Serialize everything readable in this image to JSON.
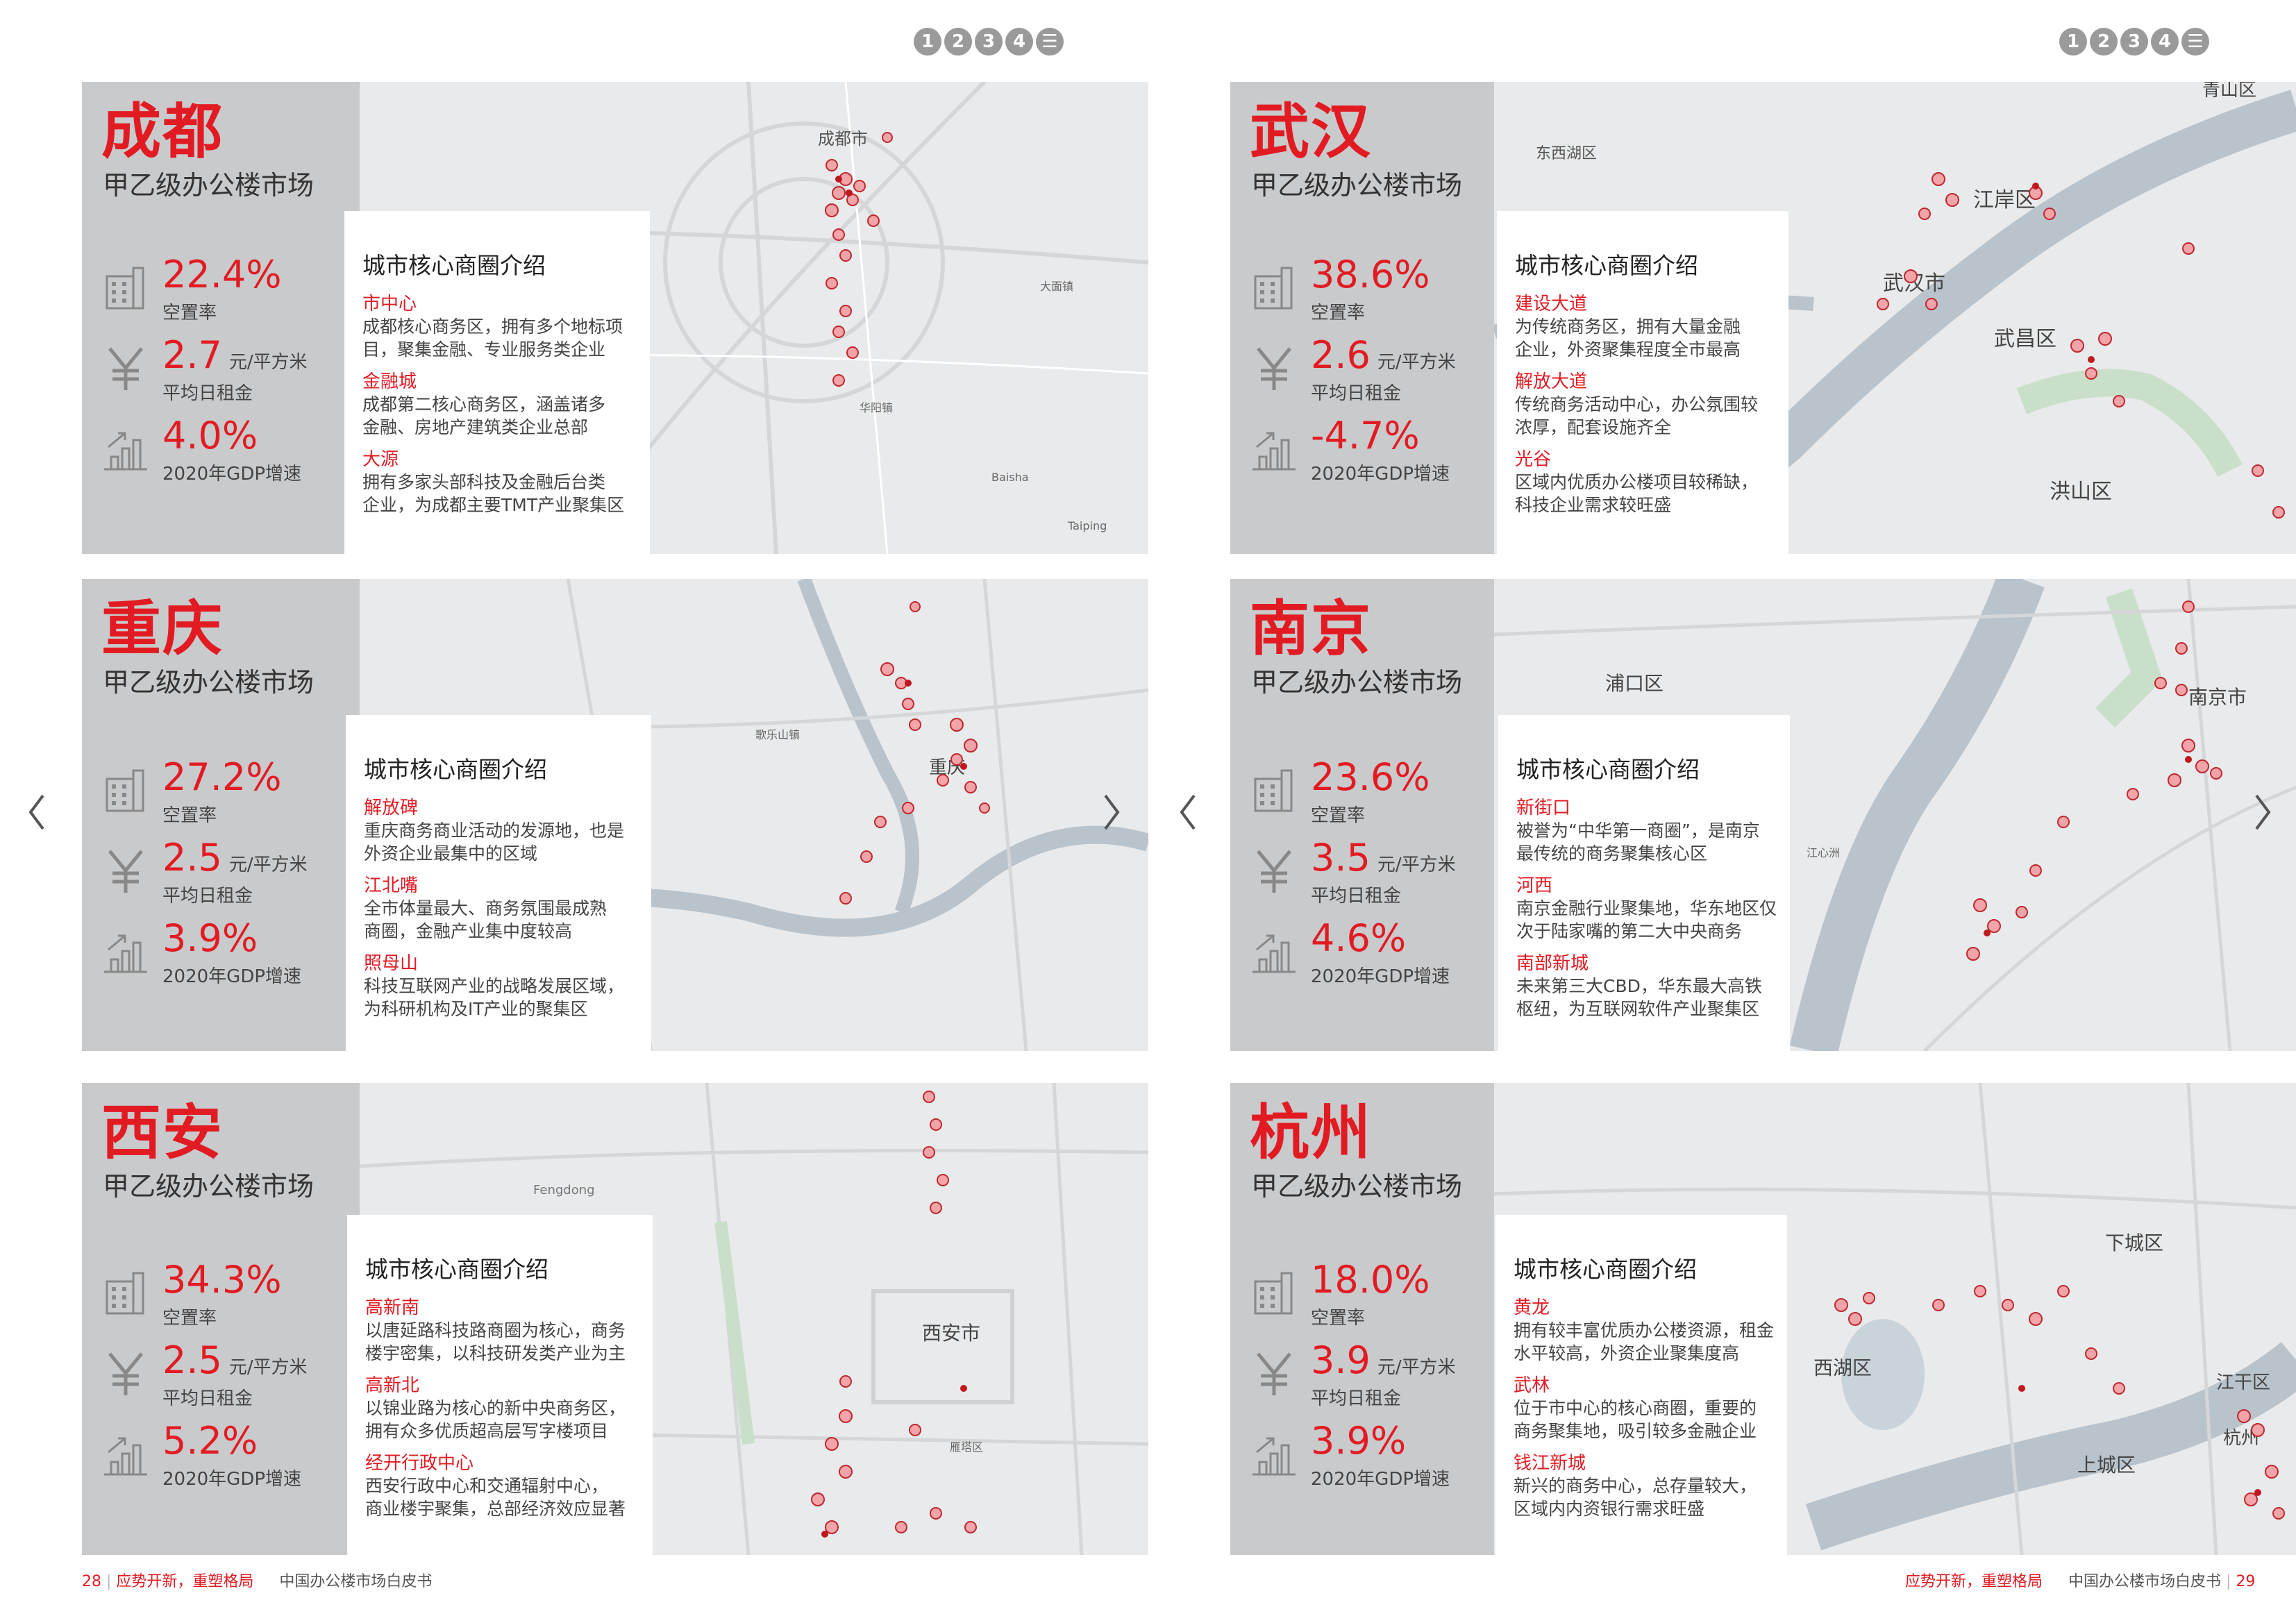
{
  "nav": [
    "1",
    "2",
    "3",
    "4",
    "☰"
  ],
  "cards": [
    {
      "city": "成都",
      "subtitle": "甲乙级办公楼市场",
      "stats": [
        {
          "value": "22.4%",
          "unit": "",
          "label": "空置率",
          "icon": "building-icon"
        },
        {
          "value": "2.7",
          "unit": "元/平方米",
          "label": "平均日租金",
          "icon": "yuan-icon"
        },
        {
          "value": "4.0%",
          "unit": "",
          "label": "2020年GDP增速",
          "icon": "growth-chart-icon"
        }
      ],
      "intro_title": "城市核心商圈介绍",
      "areas": [
        {
          "name": "市中心",
          "desc": [
            "成都核心商务区，拥有多个地标项",
            "目，聚集金融、专业服务类企业"
          ]
        },
        {
          "name": "金融城",
          "desc": [
            "成都第二核心商务区，涵盖诸多",
            "金融、房地产建筑类企业总部"
          ]
        },
        {
          "name": "大源",
          "desc": [
            "拥有多家头部科技及金融后台类",
            "企业，为成都主要TMT产业聚集区"
          ]
        }
      ],
      "map_labels": [
        "成都市",
        "大面镇",
        "华阳镇",
        "Baisha",
        "Taiping"
      ]
    },
    {
      "city": "武汉",
      "subtitle": "甲乙级办公楼市场",
      "stats": [
        {
          "value": "38.6%",
          "unit": "",
          "label": "空置率",
          "icon": "building-icon"
        },
        {
          "value": "2.6",
          "unit": "元/平方米",
          "label": "平均日租金",
          "icon": "yuan-icon"
        },
        {
          "value": "-4.7%",
          "unit": "",
          "label": "2020年GDP增速",
          "icon": "growth-chart-icon"
        }
      ],
      "intro_title": "城市核心商圈介绍",
      "areas": [
        {
          "name": "建设大道",
          "desc": [
            "为传统商务区，拥有大量金融",
            "企业，外资聚集程度全市最高"
          ]
        },
        {
          "name": "解放大道",
          "desc": [
            "传统商务活动中心，办公氛围较",
            "浓厚，配套设施齐全"
          ]
        },
        {
          "name": "光谷",
          "desc": [
            "区域内优质办公楼项目较稀缺，",
            "科技企业需求较旺盛"
          ]
        }
      ],
      "map_labels": [
        "青山区",
        "东西湖区",
        "江岸区",
        "武汉市",
        "武昌区",
        "洪山区"
      ]
    },
    {
      "city": "重庆",
      "subtitle": "甲乙级办公楼市场",
      "stats": [
        {
          "value": "27.2%",
          "unit": "",
          "label": "空置率",
          "icon": "building-icon"
        },
        {
          "value": "2.5",
          "unit": "元/平方米",
          "label": "平均日租金",
          "icon": "yuan-icon"
        },
        {
          "value": "3.9%",
          "unit": "",
          "label": "2020年GDP增速",
          "icon": "growth-chart-icon"
        }
      ],
      "intro_title": "城市核心商圈介绍",
      "areas": [
        {
          "name": "解放碑",
          "desc": [
            "重庆商务商业活动的发源地，也是",
            "外资企业最集中的区域"
          ]
        },
        {
          "name": "江北嘴",
          "desc": [
            "全市体量最大、商务氛围最成熟",
            "商圈，金融产业集中度较高"
          ]
        },
        {
          "name": "照母山",
          "desc": [
            "科技互联网产业的战略发展区域，",
            "为科研机构及IT产业的聚集区"
          ]
        }
      ],
      "map_labels": [
        "重庆",
        "歌乐山镇"
      ]
    },
    {
      "city": "南京",
      "subtitle": "甲乙级办公楼市场",
      "stats": [
        {
          "value": "23.6%",
          "unit": "",
          "label": "空置率",
          "icon": "building-icon"
        },
        {
          "value": "3.5",
          "unit": "元/平方米",
          "label": "平均日租金",
          "icon": "yuan-icon"
        },
        {
          "value": "4.6%",
          "unit": "",
          "label": "2020年GDP增速",
          "icon": "growth-chart-icon"
        }
      ],
      "intro_title": "城市核心商圈介绍",
      "areas": [
        {
          "name": "新街口",
          "desc": [
            "被誉为“中华第一商圈”，是南京",
            "最传统的商务聚集核心区"
          ]
        },
        {
          "name": "河西",
          "desc": [
            "南京金融行业聚集地，华东地区仅",
            "次于陆家嘴的第二大中央商务"
          ]
        },
        {
          "name": "南部新城",
          "desc": [
            "未来第三大CBD，华东最大高铁",
            "枢纽，为互联网软件产业聚集区"
          ]
        }
      ],
      "map_labels": [
        "浦口区",
        "南京市",
        "江心洲"
      ]
    },
    {
      "city": "西安",
      "subtitle": "甲乙级办公楼市场",
      "stats": [
        {
          "value": "34.3%",
          "unit": "",
          "label": "空置率",
          "icon": "building-icon"
        },
        {
          "value": "2.5",
          "unit": "元/平方米",
          "label": "平均日租金",
          "icon": "yuan-icon"
        },
        {
          "value": "5.2%",
          "unit": "",
          "label": "2020年GDP增速",
          "icon": "growth-chart-icon"
        }
      ],
      "intro_title": "城市核心商圈介绍",
      "areas": [
        {
          "name": "高新南",
          "desc": [
            "以唐延路科技路商圈为核心，商务",
            "楼宇密集，以科技研发类产业为主"
          ]
        },
        {
          "name": "高新北",
          "desc": [
            "以锦业路为核心的新中央商务区，",
            "拥有众多优质超高层写字楼项目"
          ]
        },
        {
          "name": "经开行政中心",
          "desc": [
            "西安行政中心和交通辐射中心，",
            "商业楼宇聚集，总部经济效应显著"
          ]
        }
      ],
      "map_labels": [
        "西安市",
        "Fengdong",
        "雁塔区"
      ]
    },
    {
      "city": "杭州",
      "subtitle": "甲乙级办公楼市场",
      "stats": [
        {
          "value": "18.0%",
          "unit": "",
          "label": "空置率",
          "icon": "building-icon"
        },
        {
          "value": "3.9",
          "unit": "元/平方米",
          "label": "平均日租金",
          "icon": "yuan-icon"
        },
        {
          "value": "3.9%",
          "unit": "",
          "label": "2020年GDP增速",
          "icon": "growth-chart-icon"
        }
      ],
      "intro_title": "城市核心商圈介绍",
      "areas": [
        {
          "name": "黄龙",
          "desc": [
            "拥有较丰富优质办公楼资源，租金",
            "水平较高，外资企业聚集度高"
          ]
        },
        {
          "name": "武林",
          "desc": [
            "位于市中心的核心商圈，重要的",
            "商务聚集地，吸引较多金融企业"
          ]
        },
        {
          "name": "钱江新城",
          "desc": [
            "新兴的商务中心，总存量较大，",
            "区域内内资银行需求旺盛"
          ]
        }
      ],
      "map_labels": [
        "下城区",
        "西湖区",
        "江干区",
        "杭州",
        "上城区"
      ]
    }
  ],
  "footer_left": {
    "page": "28",
    "slogan": "应势开新，重塑格局",
    "book": "中国办公楼市场白皮书"
  },
  "footer_right": {
    "slogan": "应势开新，重塑格局",
    "book": "中国办公楼市场白皮书",
    "page": "29"
  },
  "colors": {
    "accent": "#e21b23",
    "panel": "#c9cacc",
    "map": "#e9eaeb"
  }
}
